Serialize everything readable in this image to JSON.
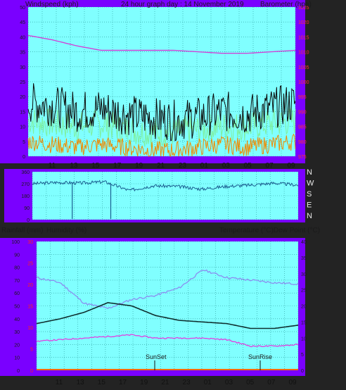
{
  "colors": {
    "frame_purple": "#7a00ff",
    "plot_cyan": "#80ffff",
    "background": "#232323",
    "wind_gust": "#0a0a0a",
    "wind_speed": "#7ef0a0",
    "wind_direction_line": "#1b5e90",
    "wind_low": "#f08a00",
    "barometer": "#d044d8",
    "temperature": "#0f2f2f",
    "dew_point": "#e040e0",
    "humidity": "#8b8ef0",
    "rainfall": "#ff6a00"
  },
  "panel1": {
    "left_label": "Windspeed (kph)",
    "title": "24 hour graph day : 14 November 2019",
    "right_label": "Barometer (hpa)",
    "y_left_ticks": [
      "50",
      "45",
      "40",
      "35",
      "30",
      "25",
      "20",
      "15",
      "10",
      "5",
      "0"
    ],
    "y_right_ticks": [
      "1025",
      "1020",
      "1015",
      "1010",
      "1005",
      "1000",
      "995",
      "990",
      "985",
      "980",
      "975"
    ]
  },
  "panel2": {
    "y_ticks": [
      "360",
      "270",
      "180",
      "90",
      "0"
    ],
    "compass": [
      "N",
      "W",
      "S",
      "E",
      "N"
    ]
  },
  "panel3": {
    "left_label_1": "Rainfall (mm)",
    "left_label_2": "Humidity (%)",
    "right_label": "Temperature (°C)Dew Point (°C)",
    "humidity_ticks": [
      "100",
      "90",
      "80",
      "70",
      "60",
      "50",
      "40",
      "30",
      "20",
      "10",
      "0"
    ],
    "rain_ticks": [
      "30",
      "25",
      "20",
      "15",
      "10",
      "5",
      "0"
    ],
    "temp_ticks": [
      "40",
      "35",
      "30",
      "25",
      "20",
      "15",
      "10",
      "5",
      "0"
    ],
    "sunset_label": "SunSet",
    "sunrise_label": "SunRise"
  },
  "x_ticks_top": [
    "11",
    "13",
    "15",
    "17",
    "19",
    "21",
    "23",
    "01",
    "03",
    "05",
    "07",
    "09"
  ],
  "x_ticks_bottom": [
    "11",
    "13",
    "15",
    "17",
    "19",
    "21",
    "23",
    "01",
    "03",
    "05",
    "07",
    "09"
  ],
  "chart_data": [
    {
      "type": "line",
      "title": "24 hour graph day : 14 November 2019",
      "xlabel": "",
      "ylabel": "Windspeed (kph)",
      "y2label": "Barometer (hpa)",
      "ylim": [
        0,
        50
      ],
      "y2lim": [
        975,
        1025
      ],
      "x": [
        "11",
        "13",
        "15",
        "17",
        "19",
        "21",
        "23",
        "01",
        "03",
        "05",
        "07",
        "09"
      ],
      "series": [
        {
          "axis": "left",
          "values": [
            18,
            17,
            15,
            16,
            14,
            13,
            12,
            13,
            15,
            14,
            16,
            18
          ]
        },
        {
          "axis": "left",
          "values": [
            12,
            11,
            10,
            11,
            9,
            8,
            8,
            9,
            10,
            10,
            11,
            12
          ]
        },
        {
          "axis": "left",
          "values": [
            5,
            4,
            3,
            4,
            3,
            2,
            2,
            3,
            4,
            3,
            4,
            5
          ]
        },
        {
          "axis": "right",
          "values": [
            1015.5,
            1014,
            1012,
            1010.5,
            1010.5,
            1010.5,
            1010.5,
            1010,
            1009.5,
            1009.5,
            1010,
            1010.5
          ]
        }
      ]
    },
    {
      "type": "line",
      "ylim": [
        0,
        360
      ],
      "x": [
        "11",
        "13",
        "15",
        "17",
        "19",
        "21",
        "23",
        "01",
        "03",
        "05",
        "07",
        "09"
      ],
      "series": [
        {
          "values": [
            270,
            280,
            275,
            285,
            220,
            255,
            250,
            230,
            250,
            260,
            275,
            260
          ]
        }
      ]
    },
    {
      "type": "line",
      "ylabel": "Rainfall (mm) / Humidity (%)",
      "y2label": "Temperature (°C) / Dew Point (°C)",
      "ylim": [
        0,
        100
      ],
      "y2lim": [
        0,
        40
      ],
      "x": [
        "11",
        "13",
        "15",
        "17",
        "19",
        "21",
        "23",
        "01",
        "03",
        "05",
        "07",
        "09"
      ],
      "series": [
        {
          "axis": "right",
          "values": [
            14.5,
            16,
            18,
            21,
            20,
            17,
            15.5,
            15,
            14.5,
            13,
            13,
            14
          ]
        },
        {
          "axis": "right",
          "values": [
            9,
            9.5,
            10,
            10.5,
            11,
            10,
            10,
            10,
            9.5,
            7.5,
            7.5,
            8
          ]
        },
        {
          "axis": "left",
          "values": [
            72,
            68,
            52,
            48,
            55,
            58,
            64,
            78,
            72,
            70,
            68,
            67
          ]
        },
        {
          "axis": "left",
          "values": [
            0,
            0,
            0,
            0,
            0,
            0,
            0,
            0,
            0,
            0,
            0,
            0
          ]
        }
      ]
    }
  ]
}
